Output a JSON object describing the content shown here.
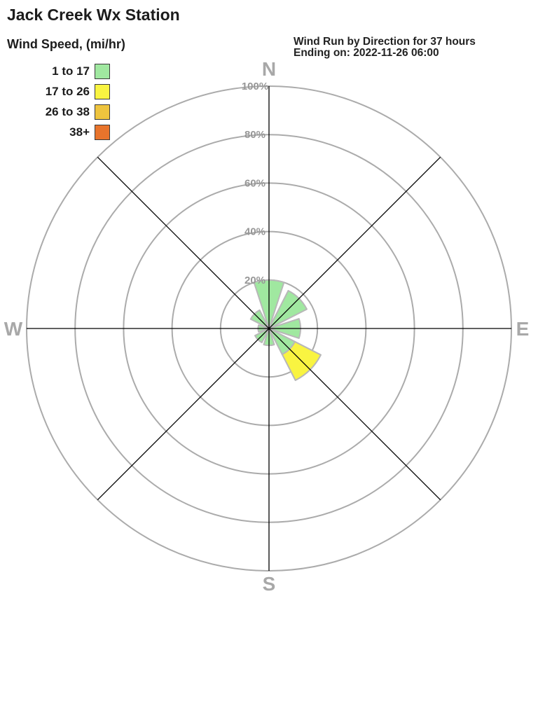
{
  "page": {
    "title": "Jack Creek Wx Station"
  },
  "legend": {
    "title": "Wind Speed, (mi/hr)",
    "items": [
      {
        "label": "1 to 17",
        "color": "#a0e8a0"
      },
      {
        "label": "17 to 26",
        "color": "#f9f441"
      },
      {
        "label": "26 to 38",
        "color": "#eec43e"
      },
      {
        "label": "38+",
        "color": "#e8742c"
      }
    ]
  },
  "subtitle": {
    "line1": "Wind Run by Direction for 37 hours",
    "line2": "Ending on: 2022-11-26 06:00"
  },
  "chart_data": {
    "type": "wind-rose",
    "units": "percent of total wind run",
    "directions": [
      "N",
      "NE",
      "E",
      "SE",
      "S",
      "SW",
      "W",
      "NW"
    ],
    "series": [
      {
        "name": "1 to 17",
        "color": "#a0e8a0",
        "values": [
          20,
          17.5,
          13,
          12,
          7,
          6.5,
          4.5,
          8.5
        ]
      },
      {
        "name": "17 to 26",
        "color": "#f9f441",
        "values": [
          0,
          0,
          0,
          12,
          0,
          0,
          0,
          0
        ]
      },
      {
        "name": "26 to 38",
        "color": "#eec43e",
        "values": [
          0,
          0,
          0,
          0,
          0,
          0,
          0,
          0
        ]
      },
      {
        "name": "38+",
        "color": "#e8742c",
        "values": [
          0,
          0,
          0,
          0,
          0,
          0,
          0,
          0
        ]
      }
    ],
    "ring_values": [
      20,
      40,
      60,
      80,
      100
    ],
    "ring_labels": [
      "20%",
      "40%",
      "60%",
      "80%",
      "100%"
    ],
    "compass_labels": {
      "n": "N",
      "e": "E",
      "s": "S",
      "w": "W"
    },
    "rmax": 100,
    "sector_width_deg": 36,
    "grid": "on",
    "legend_position": "top-left"
  }
}
